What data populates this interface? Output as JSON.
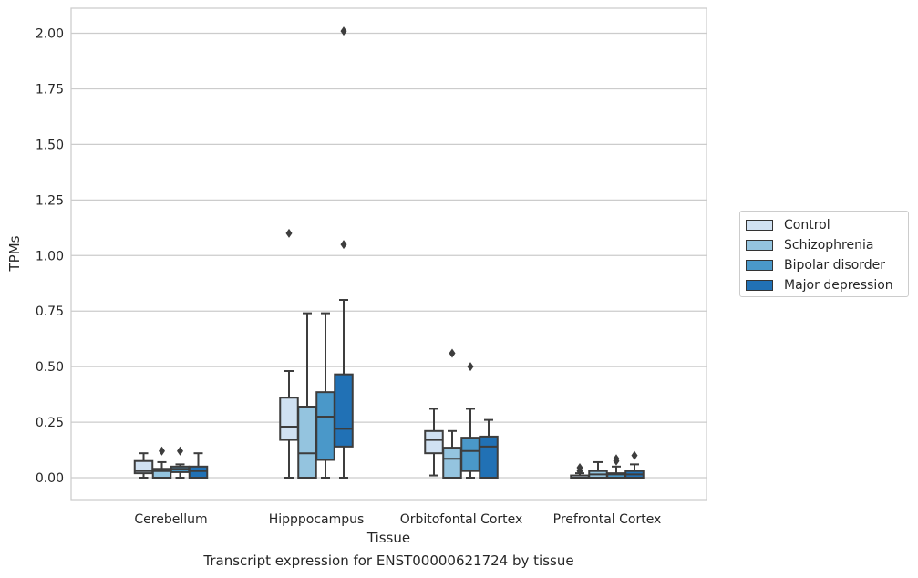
{
  "caption": "Transcript expression for ENST00000621724 by tissue",
  "chart_data": {
    "type": "box",
    "xlabel": "Tissue",
    "ylabel": "TPMs",
    "categories": [
      "Cerebellum",
      "Hipppocampus",
      "Orbitofontal Cortex",
      "Prefrontal Cortex"
    ],
    "ylim": [
      -0.1,
      2.1
    ],
    "yticks": [
      "0.00",
      "0.25",
      "0.50",
      "0.75",
      "1.00",
      "1.25",
      "1.50",
      "1.75",
      "2.00"
    ],
    "grid": true,
    "legend_position": "right",
    "series": [
      {
        "name": "Control",
        "color": "#d0e1f2",
        "boxes": [
          {
            "whislo": 0.0,
            "q1": 0.02,
            "med": 0.03,
            "q3": 0.075,
            "whishi": 0.11,
            "fliers": []
          },
          {
            "whislo": 0.0,
            "q1": 0.17,
            "med": 0.23,
            "q3": 0.36,
            "whishi": 0.48,
            "fliers": [
              1.1
            ]
          },
          {
            "whislo": 0.01,
            "q1": 0.11,
            "med": 0.17,
            "q3": 0.21,
            "whishi": 0.31,
            "fliers": []
          },
          {
            "whislo": 0.0,
            "q1": 0.0,
            "med": 0.0,
            "q3": 0.01,
            "whishi": 0.02,
            "fliers": [
              0.03,
              0.045
            ]
          }
        ]
      },
      {
        "name": "Schizophrenia",
        "color": "#94c4df",
        "boxes": [
          {
            "whislo": 0.0,
            "q1": 0.0,
            "med": 0.03,
            "q3": 0.04,
            "whishi": 0.07,
            "fliers": [
              0.12
            ]
          },
          {
            "whislo": 0.0,
            "q1": 0.0,
            "med": 0.11,
            "q3": 0.32,
            "whishi": 0.74,
            "fliers": []
          },
          {
            "whislo": 0.0,
            "q1": 0.0,
            "med": 0.085,
            "q3": 0.135,
            "whishi": 0.21,
            "fliers": [
              0.56
            ]
          },
          {
            "whislo": 0.0,
            "q1": 0.0,
            "med": 0.015,
            "q3": 0.03,
            "whishi": 0.07,
            "fliers": []
          }
        ]
      },
      {
        "name": "Bipolar disorder",
        "color": "#4a98c9",
        "boxes": [
          {
            "whislo": 0.0,
            "q1": 0.025,
            "med": 0.04,
            "q3": 0.05,
            "whishi": 0.06,
            "fliers": [
              0.12
            ]
          },
          {
            "whislo": 0.0,
            "q1": 0.08,
            "med": 0.275,
            "q3": 0.385,
            "whishi": 0.74,
            "fliers": []
          },
          {
            "whislo": 0.0,
            "q1": 0.03,
            "med": 0.12,
            "q3": 0.18,
            "whishi": 0.31,
            "fliers": [
              0.5
            ]
          },
          {
            "whislo": 0.0,
            "q1": 0.0,
            "med": 0.015,
            "q3": 0.02,
            "whishi": 0.05,
            "fliers": [
              0.075,
              0.085
            ]
          }
        ]
      },
      {
        "name": "Major depression",
        "color": "#2171b5",
        "boxes": [
          {
            "whislo": 0.0,
            "q1": 0.0,
            "med": 0.03,
            "q3": 0.05,
            "whishi": 0.11,
            "fliers": []
          },
          {
            "whislo": 0.0,
            "q1": 0.14,
            "med": 0.22,
            "q3": 0.465,
            "whishi": 0.8,
            "fliers": [
              1.05,
              2.01
            ]
          },
          {
            "whislo": 0.0,
            "q1": 0.0,
            "med": 0.14,
            "q3": 0.185,
            "whishi": 0.26,
            "fliers": []
          },
          {
            "whislo": 0.0,
            "q1": 0.0,
            "med": 0.015,
            "q3": 0.03,
            "whishi": 0.06,
            "fliers": [
              0.1
            ]
          }
        ]
      }
    ]
  }
}
